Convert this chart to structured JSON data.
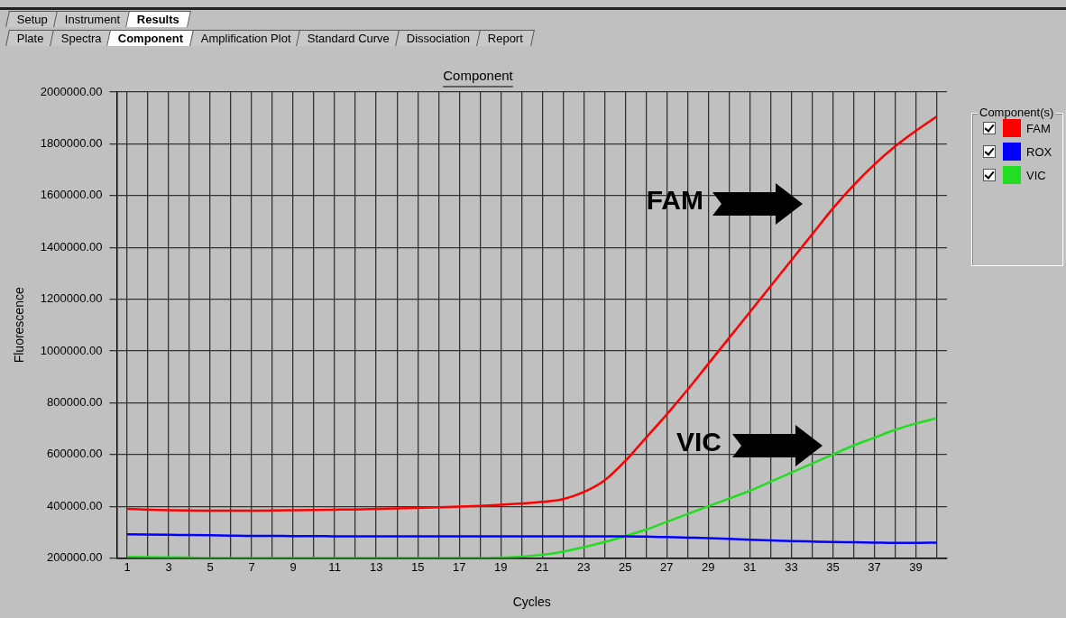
{
  "chart_data": {
    "type": "line",
    "title": "Component",
    "xlabel": "Cycles",
    "ylabel": "Fluorescence",
    "legend_title": "Component(s)",
    "legend": "right",
    "grid": true,
    "marker": "none",
    "line_style": "solid",
    "annotations": [
      "Setup",
      "Instrument",
      "Results",
      "Plate",
      "Spectra",
      "Component",
      "Amplification Plot",
      "Standard Curve",
      "Dissociation",
      "Report",
      "FAM",
      "VIC"
    ],
    "x": [
      1,
      2,
      3,
      4,
      5,
      6,
      7,
      8,
      9,
      10,
      11,
      12,
      13,
      14,
      15,
      16,
      17,
      18,
      19,
      20,
      21,
      22,
      23,
      24,
      25,
      26,
      27,
      28,
      29,
      30,
      31,
      32,
      33,
      34,
      35,
      36,
      37,
      38,
      39,
      40
    ],
    "xlim": [
      0.5,
      40.5
    ],
    "xticks": [
      1,
      {
        "value": 2,
        "label": null
      },
      3,
      {
        "value": 4,
        "label": null
      },
      5,
      {
        "value": 6,
        "label": null
      },
      7,
      {
        "value": 8,
        "label": null
      },
      9,
      {
        "value": 10,
        "label": null
      },
      11,
      {
        "value": 12,
        "label": null
      },
      13,
      {
        "value": 14,
        "label": null
      },
      15,
      {
        "value": 16,
        "label": null
      },
      17,
      {
        "value": 18,
        "label": null
      },
      19,
      {
        "value": 20,
        "label": null
      },
      21,
      {
        "value": 22,
        "label": null
      },
      23,
      {
        "value": 24,
        "label": null
      },
      25,
      {
        "value": 26,
        "label": null
      },
      27,
      {
        "value": 28,
        "label": null
      },
      29,
      {
        "value": 30,
        "label": null
      },
      31,
      {
        "value": 32,
        "label": null
      },
      33,
      {
        "value": 34,
        "label": null
      },
      35,
      {
        "value": 36,
        "label": null
      },
      37,
      {
        "value": 38,
        "label": null
      },
      39,
      {
        "value": 40,
        "label": null
      }
    ],
    "ylim": [
      200000,
      2000000
    ],
    "yticks": [
      {
        "value": 200000,
        "label": "200000.00"
      },
      {
        "value": 400000,
        "label": "400000.00"
      },
      {
        "value": 600000,
        "label": "600000.00"
      },
      {
        "value": 800000,
        "label": "800000.00"
      },
      {
        "value": 1000000,
        "label": "1000000.00"
      },
      {
        "value": 1200000,
        "label": "1200000.00"
      },
      {
        "value": 1400000,
        "label": "1400000.00"
      },
      {
        "value": 1600000,
        "label": "1600000.00"
      },
      {
        "value": 1800000,
        "label": "1800000.00"
      },
      {
        "value": 2000000,
        "label": "2000000.00"
      }
    ],
    "series": [
      {
        "name": "FAM",
        "color": "#ff0000",
        "values": [
          390000,
          387000,
          385000,
          384000,
          383000,
          383000,
          383000,
          384000,
          385000,
          386000,
          387000,
          388000,
          390000,
          392000,
          394000,
          396000,
          399000,
          402000,
          406000,
          411000,
          417000,
          428000,
          455000,
          500000,
          575000,
          665000,
          755000,
          850000,
          950000,
          1050000,
          1150000,
          1250000,
          1350000,
          1450000,
          1550000,
          1640000,
          1720000,
          1790000,
          1850000,
          1905000
        ]
      },
      {
        "name": "ROX",
        "color": "#0000ff",
        "values": [
          292000,
          291000,
          290000,
          289000,
          288000,
          287000,
          286000,
          286000,
          285000,
          285000,
          284000,
          284000,
          284000,
          284000,
          284000,
          284000,
          284000,
          284000,
          284000,
          284000,
          284000,
          284000,
          284000,
          284000,
          284000,
          283000,
          281000,
          279000,
          277000,
          274000,
          271000,
          268000,
          266000,
          264000,
          262000,
          261000,
          260000,
          259000,
          259000,
          260000
        ]
      },
      {
        "name": "VIC",
        "color": "#22dd22",
        "values": [
          205000,
          204000,
          203000,
          202000,
          200000,
          200000,
          200000,
          200000,
          200000,
          200000,
          200000,
          200000,
          200000,
          200000,
          200000,
          200000,
          200000,
          200000,
          202000,
          206000,
          213000,
          225000,
          242000,
          262000,
          285000,
          310000,
          340000,
          370000,
          400000,
          430000,
          460000,
          495000,
          530000,
          565000,
          600000,
          635000,
          665000,
          695000,
          720000,
          740000
        ]
      }
    ]
  }
}
